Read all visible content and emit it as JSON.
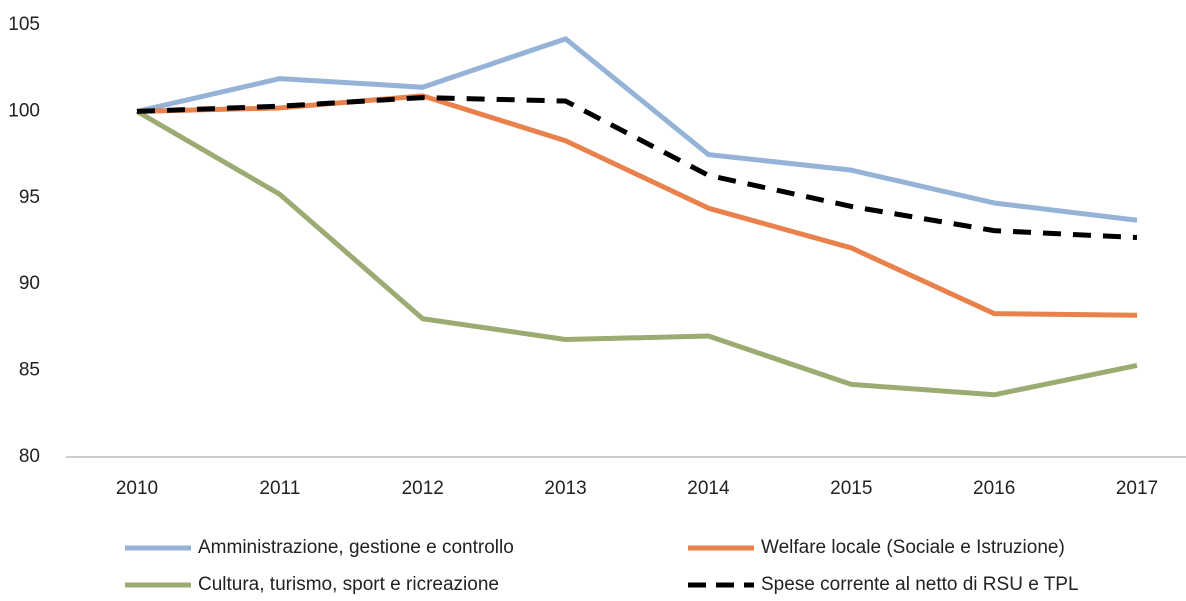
{
  "chart_data": {
    "type": "line",
    "categories": [
      "2010",
      "2011",
      "2012",
      "2013",
      "2014",
      "2015",
      "2016",
      "2017"
    ],
    "series": [
      {
        "name": "Amministrazione, gestione e controllo",
        "color": "#95b3d7",
        "style": "solid",
        "values": [
          100,
          101.9,
          101.4,
          104.2,
          97.5,
          96.6,
          94.7,
          93.7
        ]
      },
      {
        "name": "Welfare locale (Sociale e Istruzione)",
        "color": "#e8814b",
        "style": "solid",
        "values": [
          100,
          100.2,
          100.9,
          98.3,
          94.4,
          92.1,
          88.3,
          88.2
        ]
      },
      {
        "name": "Cultura, turismo, sport e ricreazione",
        "color": "#9bab72",
        "style": "solid",
        "values": [
          100,
          95.2,
          88.0,
          86.8,
          87.0,
          84.2,
          83.6,
          85.3
        ]
      },
      {
        "name": "Spese corrente al netto di RSU e TPL",
        "color": "#000000",
        "style": "dashed",
        "values": [
          100,
          100.3,
          100.8,
          100.6,
          96.3,
          94.5,
          93.1,
          92.7
        ]
      }
    ],
    "ylim": [
      80,
      105
    ],
    "yticks": [
      80,
      85,
      90,
      95,
      100,
      105
    ],
    "grid": false
  }
}
